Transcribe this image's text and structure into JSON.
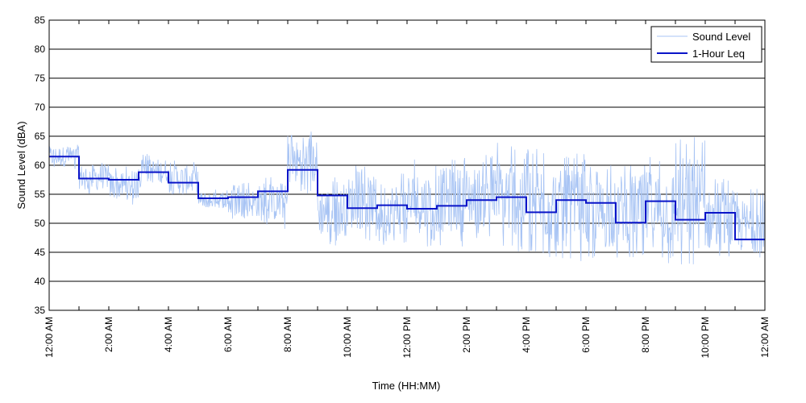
{
  "chart_data": {
    "type": "line",
    "title": "",
    "xlabel": "Time (HH:MM)",
    "ylabel": "Sound Level (dBA)",
    "ylim": [
      35,
      85
    ],
    "yticks": [
      35,
      40,
      45,
      50,
      55,
      60,
      65,
      70,
      75,
      80,
      85
    ],
    "xlim_hours": [
      0,
      24
    ],
    "xtick_hours": [
      0,
      2,
      4,
      6,
      8,
      10,
      12,
      14,
      16,
      18,
      20,
      22,
      24
    ],
    "xtick_labels": [
      "12:00 AM",
      "2:00 AM",
      "4:00 AM",
      "6:00 AM",
      "8:00 AM",
      "10:00 AM",
      "12:00 PM",
      "2:00 PM",
      "4:00 PM",
      "6:00 PM",
      "8:00 PM",
      "10:00 PM",
      "12:00 AM"
    ],
    "grid": true,
    "legend_position": "top-right",
    "colors": {
      "sound_level": "#a8c4f4",
      "leq": "#0a14c8"
    },
    "series": [
      {
        "name": "Sound Level",
        "style": "thin noisy line",
        "hourly_range_dBA": [
          [
            59,
            64
          ],
          [
            55,
            61
          ],
          [
            53,
            60
          ],
          [
            56,
            62
          ],
          [
            54,
            61
          ],
          [
            52,
            56
          ],
          [
            50,
            57
          ],
          [
            49,
            58
          ],
          [
            55,
            66
          ],
          [
            46,
            58
          ],
          [
            47,
            60
          ],
          [
            46,
            59
          ],
          [
            46,
            61
          ],
          [
            46,
            62
          ],
          [
            47,
            62
          ],
          [
            45,
            64
          ],
          [
            44,
            63
          ],
          [
            43,
            62
          ],
          [
            43,
            60
          ],
          [
            44,
            61
          ],
          [
            43,
            62
          ],
          [
            42,
            65
          ],
          [
            43,
            58
          ],
          [
            43,
            56
          ]
        ]
      },
      {
        "name": "1-Hour Leq",
        "style": "step",
        "hours": [
          0,
          1,
          2,
          3,
          4,
          5,
          6,
          7,
          8,
          9,
          10,
          11,
          12,
          13,
          14,
          15,
          16,
          17,
          18,
          19,
          20,
          21,
          22,
          23
        ],
        "values": [
          61.5,
          57.7,
          57.5,
          58.8,
          57.0,
          54.3,
          54.5,
          55.5,
          59.2,
          54.8,
          52.6,
          53.1,
          52.5,
          53.0,
          54.0,
          54.5,
          51.9,
          54.0,
          53.5,
          50.1,
          53.8,
          50.6,
          51.8,
          47.2
        ]
      }
    ]
  }
}
